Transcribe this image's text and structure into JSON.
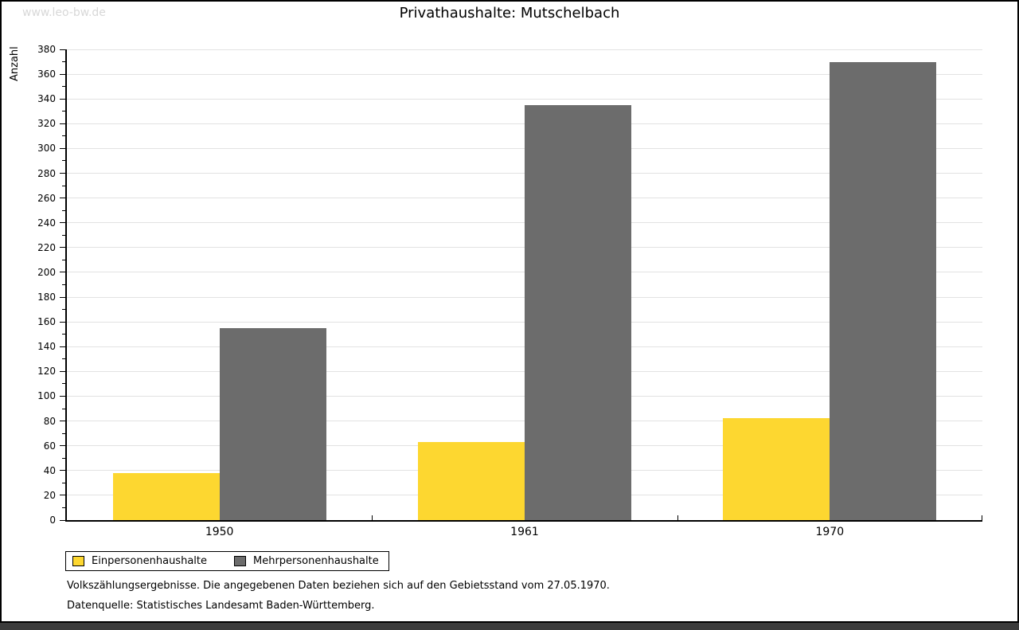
{
  "watermark": "www.leo-bw.de",
  "title": "Privathaushalte: Mutschelbach",
  "chart_data": {
    "type": "bar",
    "title": "Privathaushalte: Mutschelbach",
    "ylabel": "Anzahl",
    "xlabel": "",
    "categories": [
      "1950",
      "1961",
      "1970"
    ],
    "series": [
      {
        "name": "Einpersonenhaushalte",
        "color": "#FDD730",
        "values": [
          38,
          63,
          82
        ]
      },
      {
        "name": "Mehrpersonenhaushalte",
        "color": "#6C6C6C",
        "values": [
          155,
          335,
          370
        ]
      }
    ],
    "ylim": [
      0,
      380
    ],
    "ytick_step": 20,
    "yminor_step": 10,
    "grid": true,
    "legend_position": "bottom-left"
  },
  "footnotes": {
    "line1": "Volkszählungsergebnisse. Die angegebenen Daten beziehen sich auf den Gebietsstand vom 27.05.1970.",
    "line2": "Datenquelle: Statistisches Landesamt Baden-Württemberg."
  },
  "colors": {
    "gridline": "#E2E2E2",
    "watermark": "#D8D8D8",
    "bottom_bar": "#3C3C3C",
    "axis": "#000000",
    "background": "#FFFFFF"
  }
}
